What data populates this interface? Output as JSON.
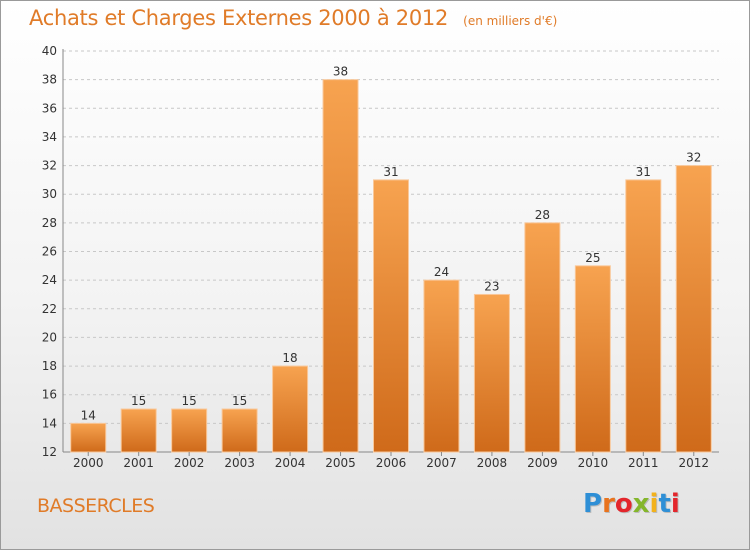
{
  "title": "Achats et Charges Externes 2000 à 2012",
  "subtitle": "(en milliers d'€)",
  "commune": "BASSERCLES",
  "brand": {
    "text": "Proxiti",
    "letter_colors": [
      "#2e8fd6",
      "#e8731d",
      "#e3262c",
      "#84b62b",
      "#f2b21c",
      "#2e8fd6",
      "#e3262c"
    ]
  },
  "colors": {
    "accent": "#e07b28",
    "bar_light": "#f7a350",
    "bar_dark": "#cf6a1a",
    "grid": "#c8c8c8",
    "axis_text": "#333333"
  },
  "chart_data": {
    "type": "bar",
    "categories": [
      "2000",
      "2001",
      "2002",
      "2003",
      "2004",
      "2005",
      "2006",
      "2007",
      "2008",
      "2009",
      "2010",
      "2011",
      "2012"
    ],
    "values": [
      14,
      15,
      15,
      15,
      18,
      38,
      31,
      24,
      23,
      28,
      25,
      31,
      32
    ],
    "ylim": [
      12,
      40
    ],
    "yticks": [
      12,
      14,
      16,
      18,
      20,
      22,
      24,
      26,
      28,
      30,
      32,
      34,
      36,
      38,
      40
    ],
    "grid": true,
    "data_labels": true
  }
}
